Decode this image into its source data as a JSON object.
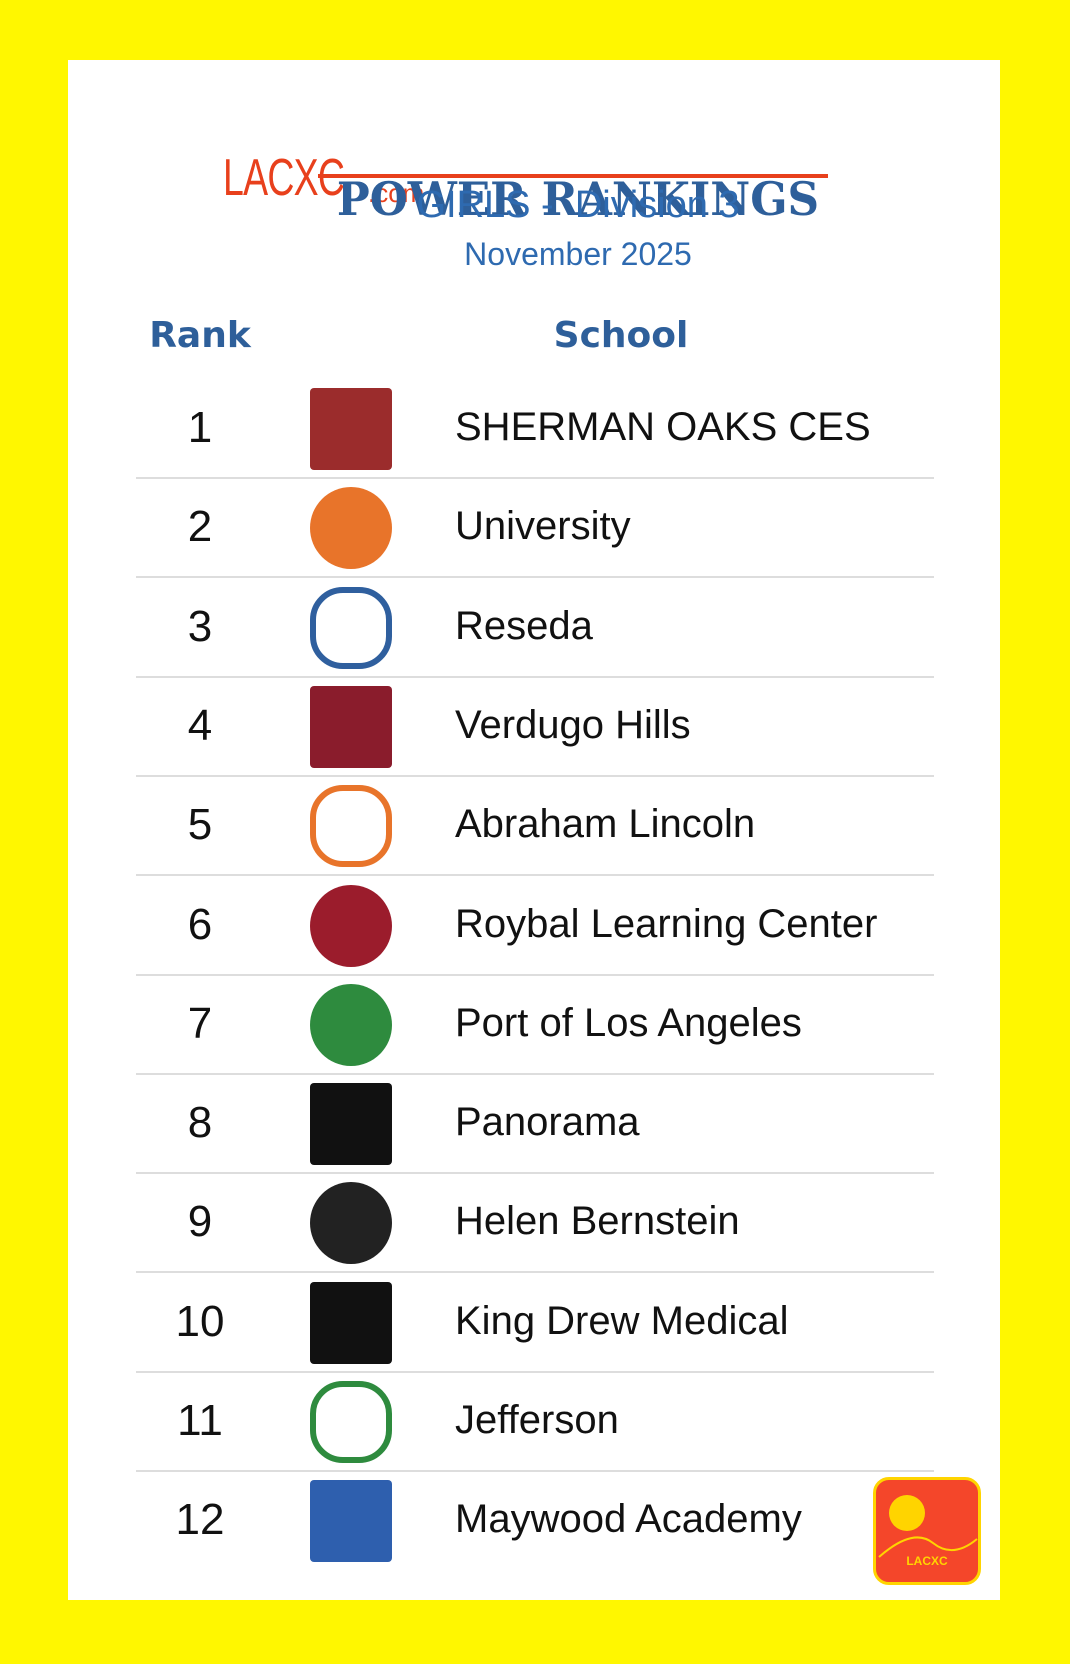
{
  "header": {
    "brand": "LACXC",
    "brand_suffix": ".com",
    "title": "POWER RANKINGS",
    "subtitle": "GIRLS -  Division 3",
    "date": "November 2025"
  },
  "table": {
    "columns": [
      "Rank",
      "School"
    ],
    "rows": [
      [
        1,
        "SHERMAN OAKS CES"
      ],
      [
        2,
        "University"
      ],
      [
        3,
        "Reseda"
      ],
      [
        4,
        "Verdugo Hills"
      ],
      [
        5,
        "Abraham Lincoln"
      ],
      [
        6,
        "Roybal Learning Center"
      ],
      [
        7,
        "Port of Los Angeles"
      ],
      [
        8,
        "Panorama"
      ],
      [
        9,
        "Helen Bernstein"
      ],
      [
        10,
        "King Drew Medical"
      ],
      [
        11,
        "Jefferson"
      ],
      [
        12,
        "Maywood Academy"
      ]
    ]
  },
  "badge": {
    "label": "LACXC"
  }
}
